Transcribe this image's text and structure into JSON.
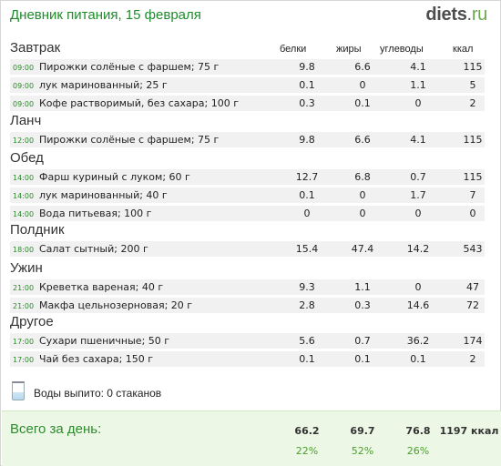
{
  "header": {
    "title": "Дневник питания, 15 февраля",
    "logo_main": "diets",
    "logo_dot": ".",
    "logo_tld": "ru"
  },
  "columns": {
    "proteins": "белки",
    "fats": "жиры",
    "carbs": "углеводы",
    "kcal": "ккал"
  },
  "meals": [
    {
      "title": "Завтрак",
      "items": [
        {
          "time": "09:00",
          "name": "Пирожки солёные с фаршем; 75 г",
          "p": "9.8",
          "f": "6.6",
          "c": "4.1",
          "k": "115"
        },
        {
          "time": "09:00",
          "name": "лук маринованный; 25 г",
          "p": "0.1",
          "f": "0",
          "c": "1.1",
          "k": "5"
        },
        {
          "time": "09:00",
          "name": "Кофе растворимый, без сахара; 100 г",
          "p": "0.3",
          "f": "0.1",
          "c": "0",
          "k": "2"
        }
      ]
    },
    {
      "title": "Ланч",
      "items": [
        {
          "time": "12:00",
          "name": "Пирожки солёные с фаршем; 75 г",
          "p": "9.8",
          "f": "6.6",
          "c": "4.1",
          "k": "115"
        }
      ]
    },
    {
      "title": "Обед",
      "items": [
        {
          "time": "14:00",
          "name": "Фарш куриный с луком; 60 г",
          "p": "12.7",
          "f": "6.8",
          "c": "0.7",
          "k": "115"
        },
        {
          "time": "14:00",
          "name": "лук маринованный; 40 г",
          "p": "0.1",
          "f": "0",
          "c": "1.7",
          "k": "7"
        },
        {
          "time": "14:00",
          "name": "Вода питьевая; 100 г",
          "p": "0",
          "f": "0",
          "c": "0",
          "k": "0"
        }
      ]
    },
    {
      "title": "Полдник",
      "items": [
        {
          "time": "18:00",
          "name": "Салат сытный; 200 г",
          "p": "15.4",
          "f": "47.4",
          "c": "14.2",
          "k": "543"
        }
      ]
    },
    {
      "title": "Ужин",
      "items": [
        {
          "time": "21:00",
          "name": "Креветка вареная; 40 г",
          "p": "9.3",
          "f": "1.1",
          "c": "0",
          "k": "47"
        },
        {
          "time": "21:00",
          "name": "Макфа цельнозерновая; 20 г",
          "p": "2.8",
          "f": "0.3",
          "c": "14.6",
          "k": "72"
        }
      ]
    },
    {
      "title": "Другое",
      "items": [
        {
          "time": "17:00",
          "name": "Сухари пшеничные; 50 г",
          "p": "5.6",
          "f": "0.7",
          "c": "36.2",
          "k": "174"
        },
        {
          "time": "17:00",
          "name": "Чай без сахара; 150 г",
          "p": "0.1",
          "f": "0.1",
          "c": "0.1",
          "k": "2"
        }
      ]
    }
  ],
  "water": {
    "text": "Воды выпито: 0 стаканов",
    "icon": "glass-icon"
  },
  "totals": {
    "label": "Всего за день:",
    "proteins": "66.2",
    "fats": "69.7",
    "carbs": "76.8",
    "kcal": "1197 ккал",
    "proteins_pct": "22%",
    "fats_pct": "52%",
    "carbs_pct": "26%"
  }
}
